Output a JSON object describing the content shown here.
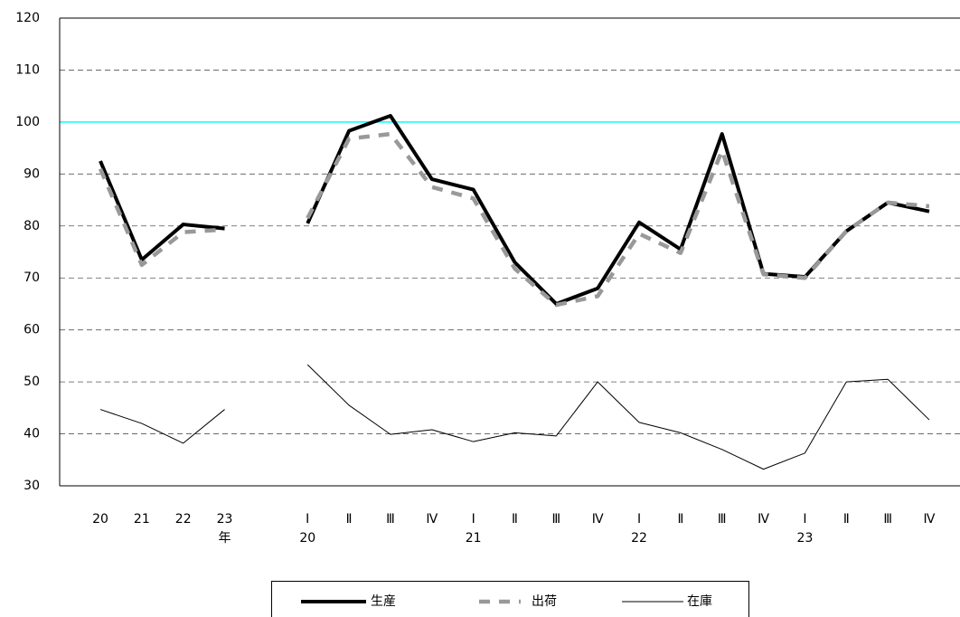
{
  "chart_data": {
    "type": "line",
    "categories": [
      "20",
      "21",
      "22",
      "23",
      null,
      "Ⅰ",
      "Ⅱ",
      "Ⅲ",
      "Ⅳ",
      "Ⅰ",
      "Ⅱ",
      "Ⅲ",
      "Ⅳ",
      "Ⅰ",
      "Ⅱ",
      "Ⅲ",
      "Ⅳ",
      "Ⅰ",
      "Ⅱ",
      "Ⅲ",
      "Ⅳ"
    ],
    "sub_labels": [
      null,
      null,
      null,
      "年",
      null,
      "20",
      null,
      null,
      null,
      "21",
      null,
      null,
      null,
      "22",
      null,
      null,
      null,
      "23",
      null,
      null,
      null
    ],
    "series": [
      {
        "name": "生産",
        "color": "#000000",
        "values": [
          92.5,
          73.5,
          80.3,
          79.5,
          null,
          80.5,
          98.3,
          101.2,
          89,
          87,
          73,
          65,
          68,
          80.7,
          75.5,
          97.7,
          70.8,
          70.2,
          79,
          84.5,
          82.8
        ]
      },
      {
        "name": "出荷",
        "color": "#999999",
        "values": [
          91,
          72.5,
          78.8,
          79.3,
          null,
          81.5,
          96.8,
          97.7,
          87.5,
          85.3,
          71.8,
          64.8,
          66.5,
          78.5,
          74.8,
          94.5,
          70.7,
          70,
          79,
          84.5,
          83.8
        ]
      },
      {
        "name": "在庫",
        "color": "#000000",
        "values": [
          44.7,
          42,
          38.2,
          44.7,
          null,
          53.3,
          45.5,
          39.9,
          40.8,
          38.5,
          40.2,
          39.6,
          50,
          42.2,
          40.2,
          37,
          33.2,
          36.3,
          50,
          50.5,
          42.7
        ]
      }
    ],
    "ylim": [
      30,
      120
    ],
    "yticks": [
      30,
      40,
      50,
      60,
      70,
      80,
      90,
      100,
      110,
      120
    ],
    "grid": true,
    "reference_line": {
      "value": 100,
      "color": "#00ffff"
    }
  }
}
